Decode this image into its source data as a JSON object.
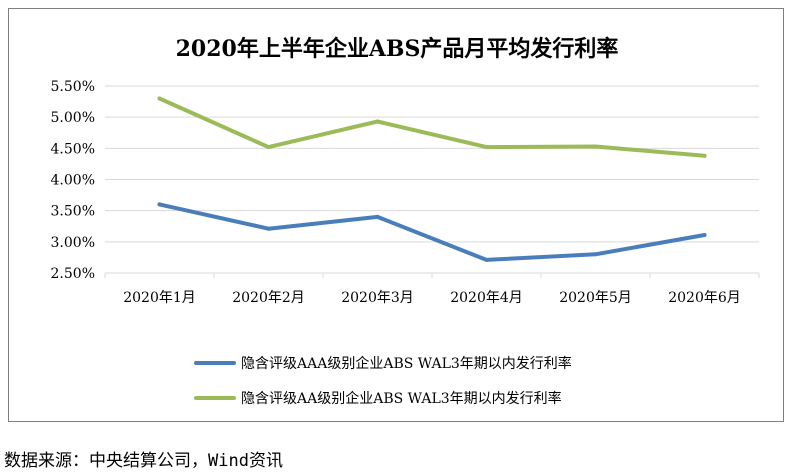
{
  "chart_data": {
    "type": "line",
    "title": "2020年上半年企业ABS产品月平均发行利率",
    "xlabel": "",
    "ylabel": "",
    "categories": [
      "2020年1月",
      "2020年2月",
      "2020年3月",
      "2020年4月",
      "2020年5月",
      "2020年6月"
    ],
    "ylim": [
      0.025,
      0.055
    ],
    "yticks": [
      0.025,
      0.03,
      0.035,
      0.04,
      0.045,
      0.05,
      0.055
    ],
    "ytick_labels": [
      "2.50%",
      "3.00%",
      "3.50%",
      "4.00%",
      "4.50%",
      "5.00%",
      "5.50%"
    ],
    "grid": "horizontal",
    "legend_position": "bottom",
    "series": [
      {
        "name": "隐含评级AAA级别企业ABS WAL3年期以内发行利率",
        "color": "#4a7ebb",
        "values": [
          0.036,
          0.0321,
          0.034,
          0.0271,
          0.028,
          0.0311
        ]
      },
      {
        "name": "隐含评级AA级别企业ABS WAL3年期以内发行利率",
        "color": "#9bbb59",
        "values": [
          0.053,
          0.0452,
          0.0493,
          0.0452,
          0.0453,
          0.0438
        ]
      }
    ]
  },
  "source_note": "数据来源：中央结算公司，Wind资讯"
}
